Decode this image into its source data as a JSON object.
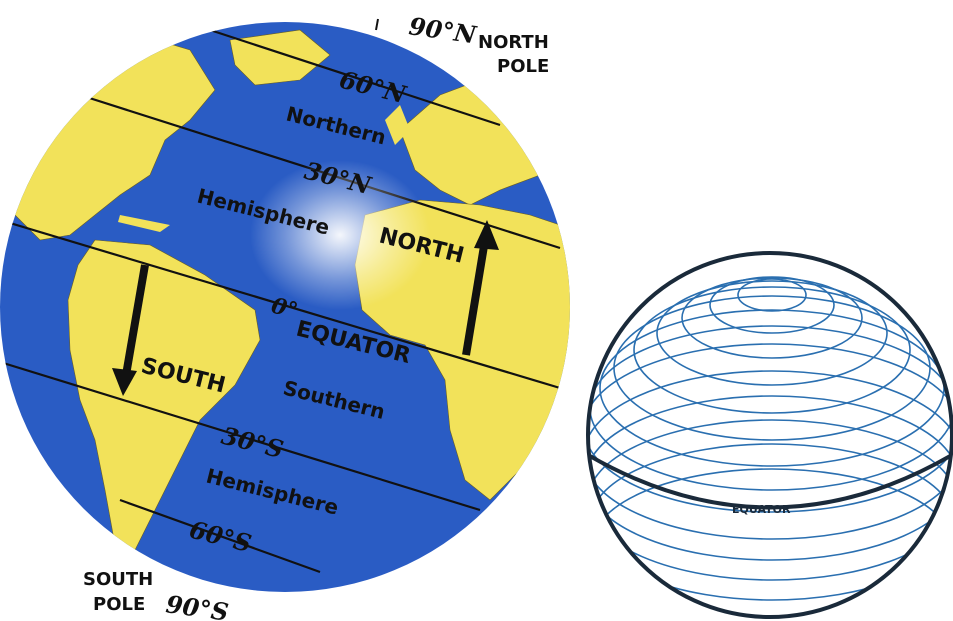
{
  "globe": {
    "labels": {
      "north_pole_deg": "90°N",
      "north_pole_line1": "NORTH",
      "north_pole_line2": "POLE",
      "lat_60n": "60°N",
      "lat_30n": "30°N",
      "lat_0": "0°",
      "equator": "EQUATOR",
      "lat_30s": "30°S",
      "lat_60s": "60°S",
      "northern": "Northern",
      "hemisphere_n": "Hemisphere",
      "southern": "Southern",
      "hemisphere_s": "Hemisphere",
      "north_arrow": "NORTH",
      "south_arrow": "SOUTH",
      "south_pole_line1": "SOUTH",
      "south_pole_line2": "POLE",
      "south_pole_deg": "90°S"
    },
    "colors": {
      "ocean": "#2a5cc4",
      "land": "#f2e25a",
      "lines": "#111111",
      "arrow": "#111111"
    }
  },
  "sphere": {
    "equator_label": "EQUATOR",
    "colors": {
      "outline": "#1a2a3a",
      "latitude_lines": "#2a6fb0",
      "equator_line": "#1a2a3a"
    }
  }
}
